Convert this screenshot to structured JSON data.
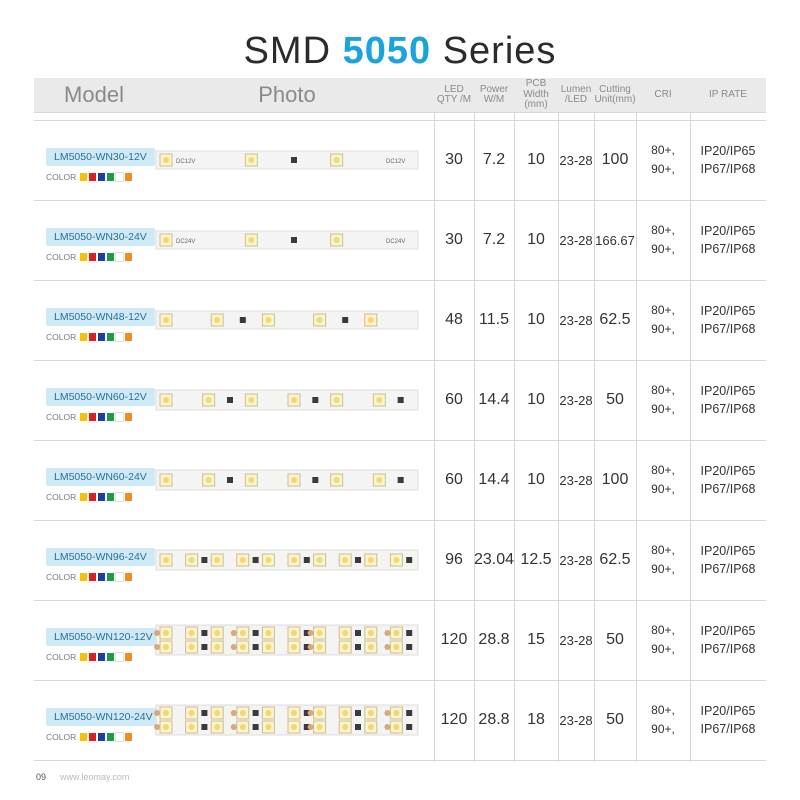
{
  "title": {
    "prefix": "SMD",
    "highlight": "5050",
    "suffix": "Series"
  },
  "header": {
    "model": "Model",
    "photo": "Photo",
    "led_qty": "LED QTY /M",
    "power": "Power W/M",
    "pcb_width": "PCB Width (mm)",
    "lumen": "Lumen /LED",
    "cutting": "Cutting Unit(mm)",
    "cri": "CRI",
    "ip_rate": "IP RATE"
  },
  "color_label": "COLOR",
  "swatches": [
    "#f5c200",
    "#e02020",
    "#1b3fa8",
    "#1e9a4a",
    "#ffffff",
    "#f28c1e"
  ],
  "rows": [
    {
      "model": "LM5050-WN30-12V",
      "qty": "30",
      "power": "7.2",
      "pcb": "10",
      "lumen": "23-28",
      "cut": "100",
      "cri1": "80+,",
      "cri2": "90+,",
      "ip1": "IP20/IP65",
      "ip2": "IP67/IP68",
      "pcb_text": "DC12V"
    },
    {
      "model": "LM5050-WN30-24V",
      "qty": "30",
      "power": "7.2",
      "pcb": "10",
      "lumen": "23-28",
      "cut": "166.67",
      "cri1": "80+,",
      "cri2": "90+,",
      "ip1": "IP20/IP65",
      "ip2": "IP67/IP68",
      "pcb_text": "DC24V"
    },
    {
      "model": "LM5050-WN48-12V",
      "qty": "48",
      "power": "11.5",
      "pcb": "10",
      "lumen": "23-28",
      "cut": "62.5",
      "cri1": "80+,",
      "cri2": "90+,",
      "ip1": "IP20/IP65",
      "ip2": "IP67/IP68",
      "pcb_text": ""
    },
    {
      "model": "LM5050-WN60-12V",
      "qty": "60",
      "power": "14.4",
      "pcb": "10",
      "lumen": "23-28",
      "cut": "50",
      "cri1": "80+,",
      "cri2": "90+,",
      "ip1": "IP20/IP65",
      "ip2": "IP67/IP68",
      "pcb_text": ""
    },
    {
      "model": "LM5050-WN60-24V",
      "qty": "60",
      "power": "14.4",
      "pcb": "10",
      "lumen": "23-28",
      "cut": "100",
      "cri1": "80+,",
      "cri2": "90+,",
      "ip1": "IP20/IP65",
      "ip2": "IP67/IP68",
      "pcb_text": ""
    },
    {
      "model": "LM5050-WN96-24V",
      "qty": "96",
      "power": "23.04",
      "pcb": "12.5",
      "lumen": "23-28",
      "cut": "62.5",
      "cri1": "80+,",
      "cri2": "90+,",
      "ip1": "IP20/IP65",
      "ip2": "IP67/IP68",
      "pcb_text": ""
    },
    {
      "model": "LM5050-WN120-12V",
      "qty": "120",
      "power": "28.8",
      "pcb": "15",
      "lumen": "23-28",
      "cut": "50",
      "cri1": "80+,",
      "cri2": "90+,",
      "ip1": "IP20/IP65",
      "ip2": "IP67/IP68",
      "pcb_text": ""
    },
    {
      "model": "LM5050-WN120-24V",
      "qty": "120",
      "power": "28.8",
      "pcb": "18",
      "lumen": "23-28",
      "cut": "50",
      "cri1": "80+,",
      "cri2": "90+,",
      "ip1": "IP20/IP65",
      "ip2": "IP67/IP68",
      "pcb_text": ""
    }
  ],
  "footer": {
    "page": "09",
    "url": "www.leomay.com"
  }
}
